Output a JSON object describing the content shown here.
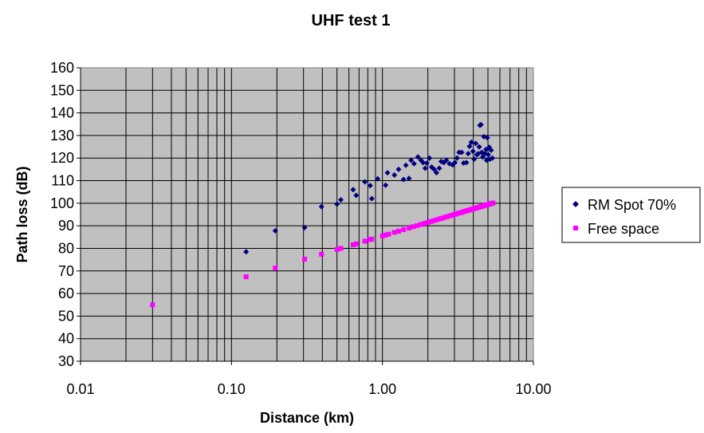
{
  "chart_data": {
    "type": "scatter",
    "title": "UHF test 1",
    "xlabel": "Distance (km)",
    "ylabel": "Path loss (dB)",
    "x_scale": "log",
    "xlim": [
      0.01,
      10
    ],
    "ylim": [
      30,
      160
    ],
    "x_ticks": [
      0.01,
      0.1,
      1,
      10
    ],
    "x_tick_labels": [
      "0.01",
      "0.10",
      "1.00",
      "10.00"
    ],
    "y_ticks": [
      30,
      40,
      50,
      60,
      70,
      80,
      90,
      100,
      110,
      120,
      130,
      140,
      150,
      160
    ],
    "y_tick_labels": [
      "30",
      "40",
      "50",
      "60",
      "70",
      "80",
      "90",
      "100",
      "110",
      "120",
      "130",
      "140",
      "150",
      "160"
    ],
    "grid": true,
    "plot_background": "#c0c0c0",
    "legend_position": "right",
    "series": [
      {
        "name": "RM Spot 70%",
        "color": "#000080",
        "marker": "diamond",
        "points": [
          [
            0.125,
            78.5
          ],
          [
            0.195,
            87.8
          ],
          [
            0.305,
            89.2
          ],
          [
            0.395,
            98.5
          ],
          [
            0.5,
            99.6
          ],
          [
            0.53,
            101.5
          ],
          [
            0.64,
            106
          ],
          [
            0.67,
            103.5
          ],
          [
            0.765,
            109.5
          ],
          [
            0.83,
            107.8
          ],
          [
            0.85,
            102
          ],
          [
            0.93,
            110.8
          ],
          [
            1.05,
            108
          ],
          [
            1.08,
            113.5
          ],
          [
            1.2,
            112.5
          ],
          [
            1.28,
            115
          ],
          [
            1.38,
            110.5
          ],
          [
            1.43,
            116.8
          ],
          [
            1.5,
            111
          ],
          [
            1.55,
            119
          ],
          [
            1.62,
            117.5
          ],
          [
            1.72,
            120.5
          ],
          [
            1.8,
            119
          ],
          [
            1.86,
            118
          ],
          [
            1.92,
            115.5
          ],
          [
            1.97,
            117.8
          ],
          [
            2.05,
            120
          ],
          [
            2.12,
            116
          ],
          [
            2.2,
            115
          ],
          [
            2.28,
            113.5
          ],
          [
            2.38,
            115.5
          ],
          [
            2.45,
            118.5
          ],
          [
            2.55,
            118
          ],
          [
            2.65,
            119
          ],
          [
            2.78,
            117.5
          ],
          [
            2.92,
            117
          ],
          [
            3.02,
            118
          ],
          [
            3.12,
            120
          ],
          [
            3.22,
            122.5
          ],
          [
            3.35,
            122.5
          ],
          [
            3.45,
            117.8
          ],
          [
            3.6,
            118
          ],
          [
            3.7,
            122
          ],
          [
            3.78,
            125.2
          ],
          [
            3.88,
            127
          ],
          [
            3.98,
            123
          ],
          [
            4.05,
            119.5
          ],
          [
            4.15,
            126.5
          ],
          [
            4.22,
            121.5
          ],
          [
            4.32,
            122
          ],
          [
            4.38,
            125
          ],
          [
            4.42,
            134.5
          ],
          [
            4.5,
            134.8
          ],
          [
            4.55,
            122.5
          ],
          [
            4.62,
            120.5
          ],
          [
            4.7,
            129.5
          ],
          [
            4.78,
            122
          ],
          [
            4.85,
            123.8
          ],
          [
            4.9,
            119
          ],
          [
            4.95,
            129
          ],
          [
            5.02,
            121.5
          ],
          [
            5.1,
            124.8
          ],
          [
            5.15,
            119.5
          ],
          [
            5.25,
            123.5
          ],
          [
            5.35,
            120
          ]
        ]
      },
      {
        "name": "Free space",
        "color": "#ff00ff",
        "marker": "square",
        "points": [
          [
            0.03,
            55
          ],
          [
            0.125,
            67.4
          ],
          [
            0.195,
            71.3
          ],
          [
            0.305,
            75.2
          ],
          [
            0.395,
            77.4
          ],
          [
            0.5,
            79.5
          ],
          [
            0.53,
            80
          ],
          [
            0.64,
            81.6
          ],
          [
            0.67,
            82
          ],
          [
            0.765,
            83.2
          ],
          [
            0.83,
            83.9
          ],
          [
            0.85,
            84.1
          ],
          [
            1.0,
            85.5
          ],
          [
            1.05,
            85.9
          ],
          [
            1.1,
            86.3
          ],
          [
            1.2,
            87.1
          ],
          [
            1.28,
            87.6
          ],
          [
            1.38,
            88.3
          ],
          [
            1.5,
            89
          ],
          [
            1.6,
            89.6
          ],
          [
            1.7,
            90.1
          ],
          [
            1.8,
            90.6
          ],
          [
            1.9,
            91.1
          ],
          [
            2.0,
            91.5
          ],
          [
            2.1,
            91.9
          ],
          [
            2.2,
            92.3
          ],
          [
            2.3,
            92.7
          ],
          [
            2.4,
            93.1
          ],
          [
            2.5,
            93.4
          ],
          [
            2.6,
            93.8
          ],
          [
            2.7,
            94.1
          ],
          [
            2.8,
            94.4
          ],
          [
            2.9,
            94.7
          ],
          [
            3.0,
            95
          ],
          [
            3.1,
            95.3
          ],
          [
            3.2,
            95.6
          ],
          [
            3.3,
            95.8
          ],
          [
            3.4,
            96.1
          ],
          [
            3.5,
            96.4
          ],
          [
            3.6,
            96.6
          ],
          [
            3.7,
            96.8
          ],
          [
            3.8,
            97.1
          ],
          [
            3.9,
            97.3
          ],
          [
            4.0,
            97.5
          ],
          [
            4.1,
            97.7
          ],
          [
            4.2,
            97.9
          ],
          [
            4.3,
            98.1
          ],
          [
            4.4,
            98.3
          ],
          [
            4.5,
            98.5
          ],
          [
            4.6,
            98.7
          ],
          [
            4.7,
            98.9
          ],
          [
            4.8,
            99.1
          ],
          [
            4.9,
            99.3
          ],
          [
            5.0,
            99.4
          ],
          [
            5.1,
            99.6
          ],
          [
            5.2,
            99.8
          ],
          [
            5.3,
            99.9
          ],
          [
            5.4,
            100.1
          ]
        ]
      }
    ]
  }
}
